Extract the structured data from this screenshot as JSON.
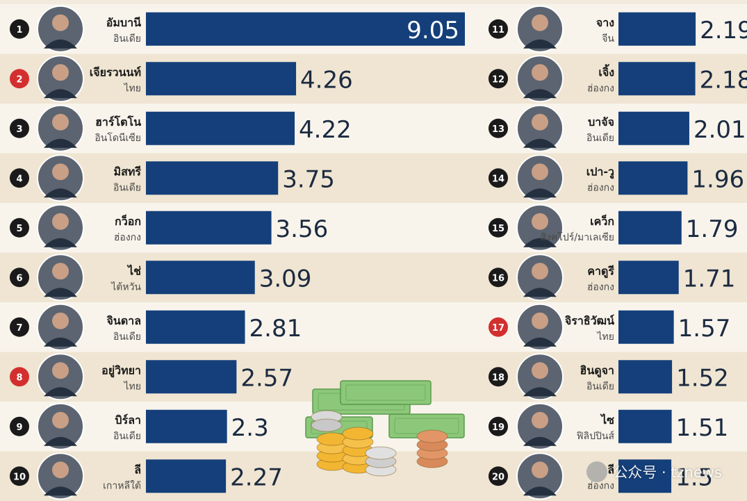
{
  "chart_data": {
    "type": "bar",
    "entries": [
      {
        "rank": "1",
        "name": "อัมบานี",
        "country": "อินเดีย",
        "value": 9.05,
        "label": "9.05",
        "thai": false
      },
      {
        "rank": "2",
        "name": "เจียรวนนท์",
        "country": "ไทย",
        "value": 4.26,
        "label": "4.26",
        "thai": true
      },
      {
        "rank": "3",
        "name": "ฮาร์โตโน",
        "country": "อินโดนีเซีย",
        "value": 4.22,
        "label": "4.22",
        "thai": false
      },
      {
        "rank": "4",
        "name": "มิสทรี",
        "country": "อินเดีย",
        "value": 3.75,
        "label": "3.75",
        "thai": false
      },
      {
        "rank": "5",
        "name": "กว็อก",
        "country": "ฮ่องกง",
        "value": 3.56,
        "label": "3.56",
        "thai": false
      },
      {
        "rank": "6",
        "name": "ไช่",
        "country": "ไต้หวัน",
        "value": 3.09,
        "label": "3.09",
        "thai": false
      },
      {
        "rank": "7",
        "name": "จินดาล",
        "country": "อินเดีย",
        "value": 2.81,
        "label": "2.81",
        "thai": false
      },
      {
        "rank": "8",
        "name": "อยู่วิทยา",
        "country": "ไทย",
        "value": 2.57,
        "label": "2.57",
        "thai": true
      },
      {
        "rank": "9",
        "name": "บิร์ลา",
        "country": "อินเดีย",
        "value": 2.3,
        "label": "2.3",
        "thai": false
      },
      {
        "rank": "10",
        "name": "ลี",
        "country": "เกาหลีใต้",
        "value": 2.27,
        "label": "2.27",
        "thai": false
      },
      {
        "rank": "11",
        "name": "จาง",
        "country": "จีน",
        "value": 2.19,
        "label": "2.19",
        "thai": false
      },
      {
        "rank": "12",
        "name": "เจิ้ง",
        "country": "ฮ่องกง",
        "value": 2.18,
        "label": "2.18",
        "thai": false
      },
      {
        "rank": "13",
        "name": "บาจัจ",
        "country": "อินเดีย",
        "value": 2.01,
        "label": "2.01",
        "thai": false
      },
      {
        "rank": "14",
        "name": "เปา-วู",
        "country": "ฮ่องกง",
        "value": 1.96,
        "label": "1.96",
        "thai": false
      },
      {
        "rank": "15",
        "name": "เคว็ก",
        "country": "สิงคโปร์/มาเลเซีย",
        "value": 1.79,
        "label": "1.79",
        "thai": false
      },
      {
        "rank": "16",
        "name": "คาดูรี",
        "country": "ฮ่องกง",
        "value": 1.71,
        "label": "1.71",
        "thai": false
      },
      {
        "rank": "17",
        "name": "จิราธิวัฒน์",
        "country": "ไทย",
        "value": 1.57,
        "label": "1.57",
        "thai": true
      },
      {
        "rank": "18",
        "name": "ฮินดูจา",
        "country": "อินเดีย",
        "value": 1.52,
        "label": "1.52",
        "thai": false
      },
      {
        "rank": "19",
        "name": "ไซ",
        "country": "ฟิลิปปินส์",
        "value": 1.51,
        "label": "1.51",
        "thai": false
      },
      {
        "rank": "20",
        "name": "ลี",
        "country": "ฮ่องกง",
        "value": 1.5,
        "label": "1.5",
        "thai": false
      }
    ],
    "xlim": [
      0,
      9.05
    ],
    "grid": false,
    "legend": "none"
  },
  "colors": {
    "bar": "#143f7a",
    "row_light": "#f8f4ec",
    "row_dark": "#efe5d2",
    "rank_default": "#1a1a1a",
    "rank_thai": "#d32f2f",
    "value_text": "#1b2a40"
  },
  "watermark": {
    "text": "公众号 · tznews",
    "icon": "wechat-logo-icon"
  }
}
